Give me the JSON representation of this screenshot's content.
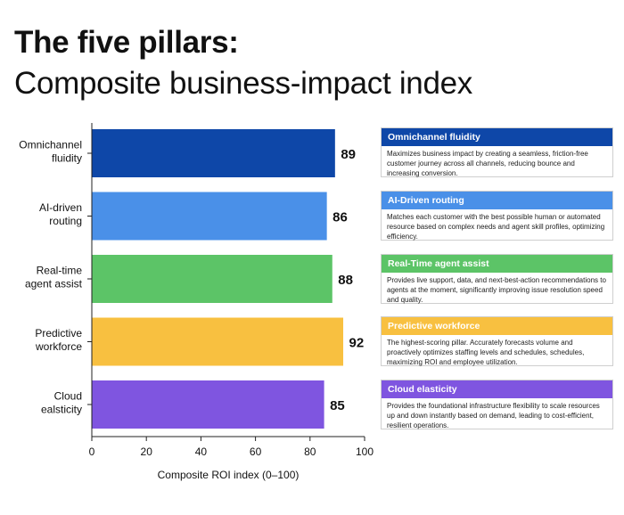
{
  "title": {
    "line1": "The five pillars:",
    "line2": "Composite business-impact index"
  },
  "chart_data": {
    "type": "bar",
    "orientation": "horizontal",
    "categories": [
      [
        "Omnichannel",
        "fluidity"
      ],
      [
        "AI-driven",
        "routing"
      ],
      [
        "Real-time",
        "agent assist"
      ],
      [
        "Predictive",
        "workforce"
      ],
      [
        "Cloud",
        "ealsticity"
      ]
    ],
    "values": [
      89,
      86,
      88,
      92,
      85
    ],
    "colors": [
      "#0e47a8",
      "#4a90e8",
      "#5cc467",
      "#f8c040",
      "#7f55e0"
    ],
    "xlim": [
      0,
      100
    ],
    "xticks": [
      0,
      20,
      40,
      60,
      80,
      100
    ],
    "xlabel": "Composite ROI index (0–100)",
    "grid": false
  },
  "cards": [
    {
      "title": "Omnichannel fluidity",
      "color": "#0e47a8",
      "text": "Maximizes business impact by creating a seamless, friction-free customer journey across all channels, reducing bounce and increasing conversion."
    },
    {
      "title": "AI-Driven routing",
      "color": "#4a90e8",
      "text": "Matches each customer with the best possible human or automated resource based on complex needs and agent skill profiles, optimizing efficiency."
    },
    {
      "title": "Real-Time agent assist",
      "color": "#5cc467",
      "text": "Provides live support, data, and next-best-action recommendations to agents at the moment, significantly improving issue resolution speed and quality."
    },
    {
      "title": "Predictive workforce",
      "color": "#f8c040",
      "text": "The highest-scoring pillar. Accurately forecasts volume and proactively optimizes staffing levels and schedules, schedules, maximizing ROI and employee utilization."
    },
    {
      "title": "Cloud elasticity",
      "color": "#7f55e0",
      "text": "Provides the foundational infrastructure flexibility to scale resources up and down instantly based on demand, leading to cost-efficient, resilient operations."
    }
  ]
}
